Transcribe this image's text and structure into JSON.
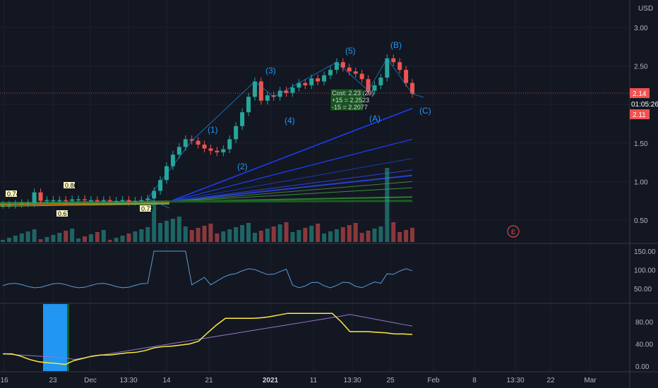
{
  "currency": "USD",
  "price_axis": {
    "ticks": [
      "3.00",
      "2.50",
      "2.00",
      "1.50",
      "1.00",
      "0.50"
    ],
    "tick_values": [
      3.0,
      2.5,
      2.0,
      1.5,
      1.0,
      0.5
    ],
    "current_price": "2.14",
    "countdown": "01:05:26",
    "secondary_price": "2.11"
  },
  "rsi_axis": {
    "ticks": [
      "150.00",
      "100.00",
      "50.00"
    ],
    "tick_values": [
      150,
      100,
      50
    ]
  },
  "osc_axis": {
    "ticks": [
      "80.00",
      "40.00",
      "0.00"
    ],
    "tick_values": [
      80,
      40,
      0
    ]
  },
  "x_axis": {
    "ticks": [
      "16",
      "23",
      "Dec",
      "13:30",
      "14",
      "21",
      "2021",
      "11",
      "13:30",
      "25",
      "Feb",
      "8",
      "13:30",
      "22",
      "Mar"
    ],
    "bold_tick": "2021"
  },
  "wave_labels": [
    "(1)",
    "(2)",
    "(3)",
    "(4)",
    "(5)",
    "(A)",
    "(B)",
    "(C)"
  ],
  "price_tags": [
    "0.74",
    "0.86",
    "0.67",
    "0.72"
  ],
  "info_box": {
    "lines": [
      "Cost: 2.23 (29)",
      "+15 = 2.2523",
      "-15 = 2.2077"
    ]
  },
  "earnings_marker": "E",
  "colors": {
    "up": "#26a69a",
    "down": "#ef5350",
    "wave": "#2196f3",
    "rsi": "#5b9bd5",
    "osc": "#ffeb3b",
    "osc_signal": "#9575cd",
    "highlight": "#2196f3",
    "price_line": "#ef5350"
  },
  "chart_data": {
    "type": "candlestick",
    "series": [
      {
        "name": "close",
        "values": [
          0.7,
          0.7,
          0.71,
          0.72,
          0.72,
          0.86,
          0.75,
          0.76,
          0.76,
          0.76,
          0.75,
          0.77,
          0.77,
          0.76,
          0.76,
          0.75,
          0.76,
          0.75,
          0.75,
          0.76,
          0.74,
          0.75,
          0.76,
          0.78,
          0.88,
          1.02,
          1.2,
          1.35,
          1.45,
          1.55,
          1.53,
          1.48,
          1.43,
          1.4,
          1.38,
          1.42,
          1.55,
          1.72,
          1.9,
          2.1,
          2.3,
          2.05,
          2.12,
          2.1,
          2.18,
          2.15,
          2.22,
          2.28,
          2.25,
          2.34,
          2.3,
          2.38,
          2.45,
          2.55,
          2.48,
          2.43,
          2.4,
          2.33,
          2.18,
          2.25,
          2.35,
          2.6,
          2.55,
          2.45,
          2.28,
          2.14
        ]
      }
    ],
    "osc": [
      22,
      22,
      18,
      12,
      8,
      6,
      5,
      3,
      10,
      14,
      18,
      20,
      20,
      22,
      24,
      25,
      28,
      33,
      35,
      36,
      38,
      40,
      45,
      60,
      74,
      86,
      86,
      86,
      86,
      87,
      89,
      92,
      95,
      95,
      95,
      95,
      95,
      95,
      80,
      62,
      62,
      62,
      61,
      60,
      58,
      58,
      57
    ]
  }
}
